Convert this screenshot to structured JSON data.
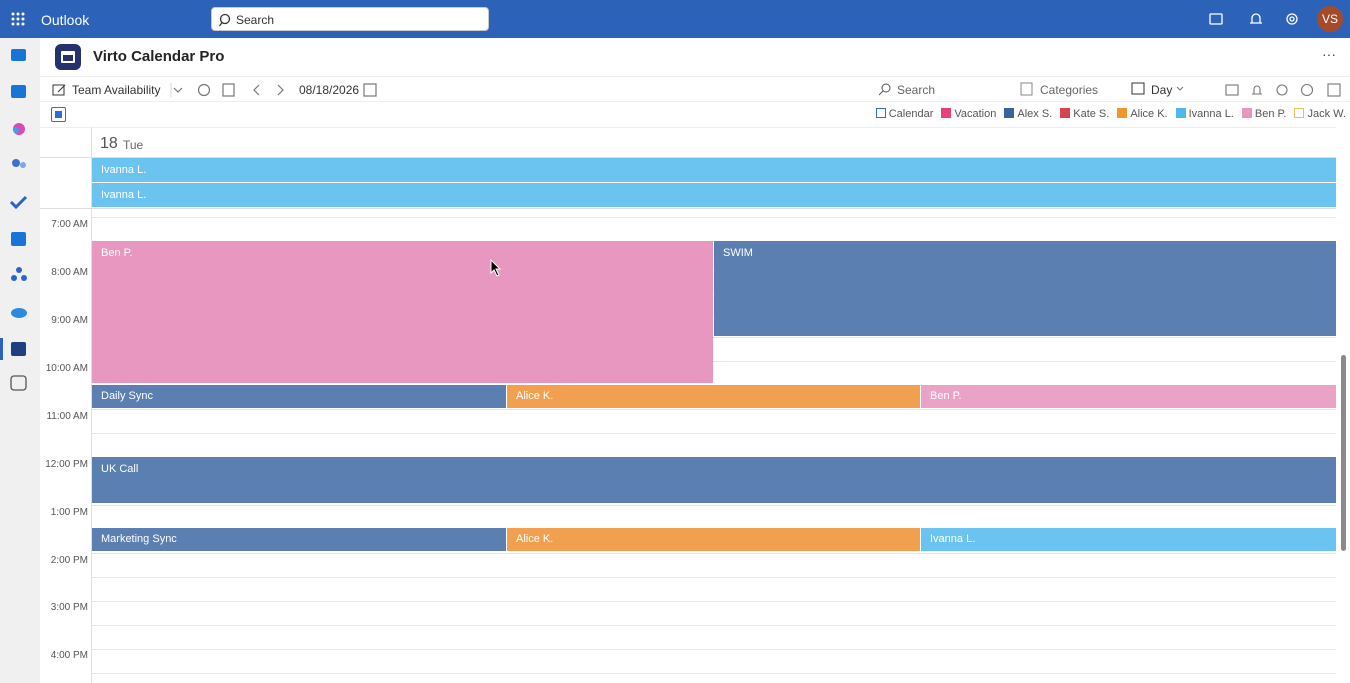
{
  "top_bar": {
    "app_name": "Outlook",
    "search_placeholder": "Search",
    "avatar": "VS"
  },
  "app_header": {
    "title": "Virto Calendar Pro",
    "more": "···"
  },
  "toolbar": {
    "view_name": "Team Availability",
    "date": "08/18/2026",
    "search_placeholder": "Search",
    "categories": "Categories",
    "view_mode": "Day"
  },
  "legend": [
    {
      "label": "Calendar",
      "color": "#2b6fd6",
      "outline": true
    },
    {
      "label": "Vacation",
      "color": "#e8417a"
    },
    {
      "label": "Alex S.",
      "color": "#3b62a0"
    },
    {
      "label": "Kate S.",
      "color": "#d9434f"
    },
    {
      "label": "Alice K.",
      "color": "#f0962e"
    },
    {
      "label": "Ivanna L.",
      "color": "#4fb8ea"
    },
    {
      "label": "Ben P.",
      "color": "#e896c0"
    },
    {
      "label": "Jack W.",
      "color": "#e8c060",
      "outline": true
    }
  ],
  "day_header": {
    "day": "18",
    "weekday": "Tue"
  },
  "all_day_events": [
    "Ivanna L.",
    "Ivanna L."
  ],
  "time_labels": [
    "7:00 AM",
    "8:00 AM",
    "9:00 AM",
    "10:00 AM",
    "11:00 AM",
    "12:00 PM",
    "1:00 PM",
    "2:00 PM",
    "3:00 PM",
    "4:00 PM"
  ],
  "events": [
    "Ben P.",
    "SWIM",
    "Daily Sync",
    "Alice K.",
    "Ben P.",
    "UK Call",
    "Marketing Sync",
    "Alice K.",
    "Ivanna L."
  ]
}
